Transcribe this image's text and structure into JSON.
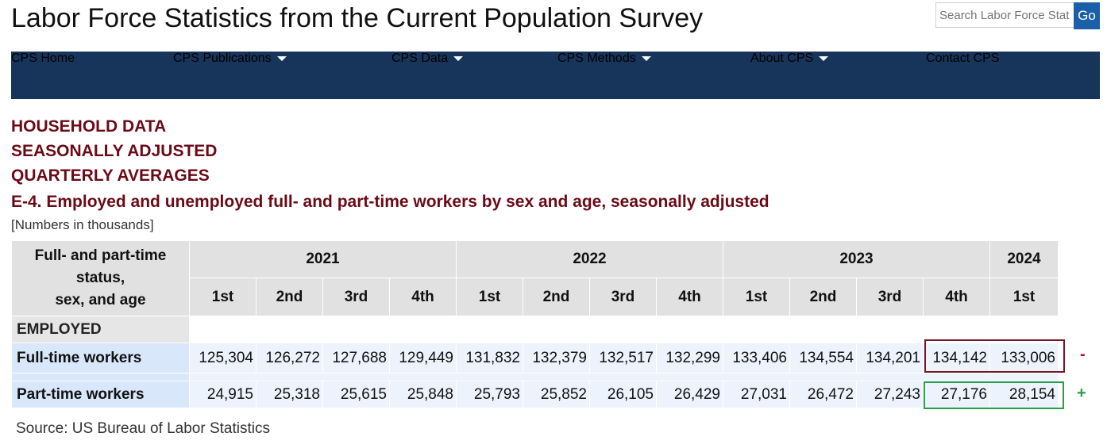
{
  "header": {
    "title": "Labor Force Statistics from the Current Population Survey",
    "search_placeholder": "Search Labor Force Stat",
    "search_button": "Go"
  },
  "nav": [
    {
      "label": "CPS Home",
      "dropdown": false
    },
    {
      "label": "CPS Publications",
      "dropdown": true
    },
    {
      "label": "CPS Data",
      "dropdown": true
    },
    {
      "label": "CPS Methods",
      "dropdown": true
    },
    {
      "label": "About CPS",
      "dropdown": true
    },
    {
      "label": "Contact CPS",
      "dropdown": false
    }
  ],
  "headings": [
    "HOUSEHOLD DATA",
    "SEASONALLY ADJUSTED",
    "QUARTERLY AVERAGES"
  ],
  "table_title": "E-4. Employed and unemployed full- and part-time workers by sex and age, seasonally adjusted",
  "note": "[Numbers in thousands]",
  "table": {
    "corner": [
      "Full- and part-time",
      "status,",
      "sex, and age"
    ],
    "years": [
      {
        "year": "2021",
        "quarters": [
          "1st",
          "2nd",
          "3rd",
          "4th"
        ]
      },
      {
        "year": "2022",
        "quarters": [
          "1st",
          "2nd",
          "3rd",
          "4th"
        ]
      },
      {
        "year": "2023",
        "quarters": [
          "1st",
          "2nd",
          "3rd",
          "4th"
        ]
      },
      {
        "year": "2024",
        "quarters": [
          "1st"
        ]
      }
    ],
    "section": "EMPLOYED",
    "rows": [
      {
        "label": "Full-time workers",
        "values": [
          "125,304",
          "126,272",
          "127,688",
          "129,449",
          "131,832",
          "132,379",
          "132,517",
          "132,299",
          "133,406",
          "134,554",
          "134,201",
          "134,142",
          "133,006"
        ],
        "marker": "-"
      },
      {
        "label": "Part-time workers",
        "values": [
          "24,915",
          "25,318",
          "25,615",
          "25,848",
          "25,793",
          "25,852",
          "26,105",
          "26,429",
          "27,031",
          "26,472",
          "27,243",
          "27,176",
          "28,154"
        ],
        "marker": "+"
      }
    ]
  },
  "source": "Source: US Bureau of Labor Statistics"
}
